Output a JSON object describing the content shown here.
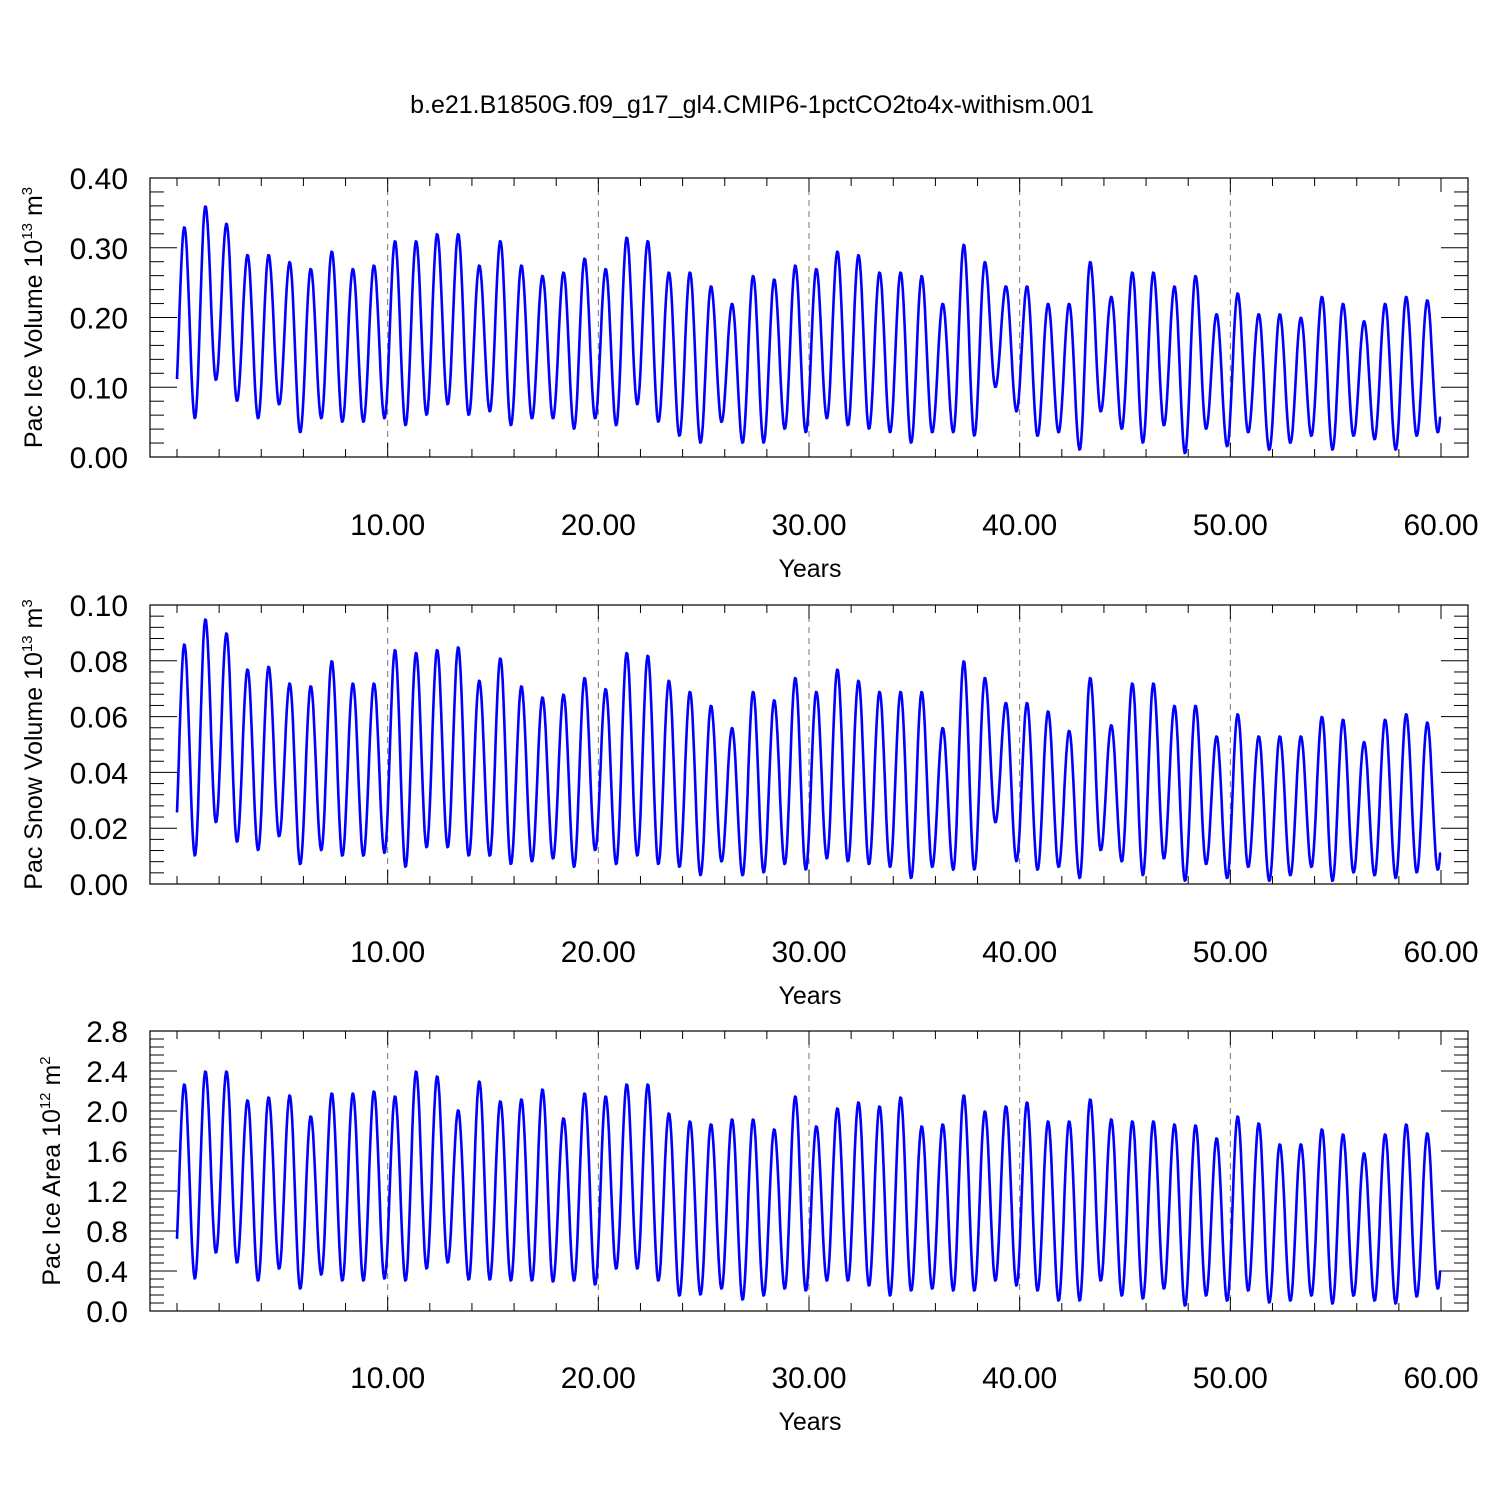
{
  "title": "b.e21.B1850G.f09_g17_gl4.CMIP6-1pctCO2to4x-withism.001",
  "chart_data": [
    {
      "type": "line",
      "xlabel": "Years",
      "ylabel": {
        "main": "Pac Ice Volume 10",
        "exp": "13",
        "unit": " m",
        "unit_exp": "3"
      },
      "xlim": [
        0,
        60
      ],
      "ylim": [
        0,
        0.4
      ],
      "xticks": [
        10,
        20,
        30,
        40,
        50,
        60
      ],
      "xtick_labels": [
        "10.00",
        "20.00",
        "30.00",
        "40.00",
        "50.00",
        "60.00"
      ],
      "yticks": [
        0,
        0.1,
        0.2,
        0.3,
        0.4
      ],
      "ytick_labels": [
        "0.00",
        "0.10",
        "0.20",
        "0.30",
        "0.40"
      ],
      "grid": "vertical dashed at x major ticks",
      "color": "#0000ff",
      "series": [
        {
          "frequency": "monthly seasonal cycle, one peak per year",
          "annual_max": [
            0.33,
            0.36,
            0.335,
            0.29,
            0.29,
            0.28,
            0.27,
            0.295,
            0.27,
            0.275,
            0.31,
            0.31,
            0.32,
            0.32,
            0.275,
            0.31,
            0.275,
            0.26,
            0.265,
            0.285,
            0.27,
            0.315,
            0.31,
            0.265,
            0.265,
            0.245,
            0.22,
            0.26,
            0.255,
            0.275,
            0.27,
            0.295,
            0.29,
            0.265,
            0.265,
            0.26,
            0.22,
            0.305,
            0.28,
            0.245,
            0.245,
            0.22,
            0.22,
            0.28,
            0.23,
            0.265,
            0.265,
            0.245,
            0.26,
            0.205,
            0.235,
            0.205,
            0.205,
            0.2,
            0.23,
            0.22,
            0.195,
            0.22,
            0.23,
            0.225
          ],
          "annual_min": [
            0.055,
            0.11,
            0.08,
            0.055,
            0.075,
            0.035,
            0.055,
            0.05,
            0.05,
            0.055,
            0.045,
            0.06,
            0.075,
            0.06,
            0.065,
            0.045,
            0.055,
            0.055,
            0.04,
            0.055,
            0.045,
            0.075,
            0.05,
            0.03,
            0.02,
            0.05,
            0.02,
            0.02,
            0.04,
            0.035,
            0.055,
            0.045,
            0.04,
            0.035,
            0.02,
            0.035,
            0.035,
            0.03,
            0.1,
            0.065,
            0.03,
            0.035,
            0.01,
            0.065,
            0.04,
            0.02,
            0.045,
            0.005,
            0.04,
            0.015,
            0.035,
            0.01,
            0.02,
            0.03,
            0.01,
            0.03,
            0.025,
            0.01,
            0.03,
            0.035
          ]
        }
      ]
    },
    {
      "type": "line",
      "xlabel": "Years",
      "ylabel": {
        "main": "Pac Snow Volume 10",
        "exp": "13",
        "unit": " m",
        "unit_exp": "3"
      },
      "xlim": [
        0,
        60
      ],
      "ylim": [
        0,
        0.1
      ],
      "xticks": [
        10,
        20,
        30,
        40,
        50,
        60
      ],
      "xtick_labels": [
        "10.00",
        "20.00",
        "30.00",
        "40.00",
        "50.00",
        "60.00"
      ],
      "yticks": [
        0,
        0.02,
        0.04,
        0.06,
        0.08,
        0.1
      ],
      "ytick_labels": [
        "0.00",
        "0.02",
        "0.04",
        "0.06",
        "0.08",
        "0.10"
      ],
      "grid": "vertical dashed at x major ticks",
      "color": "#0000ff",
      "series": [
        {
          "frequency": "monthly seasonal cycle, one peak per year",
          "annual_max": [
            0.086,
            0.095,
            0.09,
            0.077,
            0.078,
            0.072,
            0.071,
            0.08,
            0.072,
            0.072,
            0.084,
            0.083,
            0.084,
            0.085,
            0.073,
            0.081,
            0.071,
            0.067,
            0.068,
            0.074,
            0.07,
            0.083,
            0.082,
            0.073,
            0.069,
            0.064,
            0.056,
            0.069,
            0.066,
            0.074,
            0.069,
            0.077,
            0.073,
            0.069,
            0.069,
            0.069,
            0.056,
            0.08,
            0.074,
            0.065,
            0.065,
            0.062,
            0.055,
            0.074,
            0.057,
            0.072,
            0.072,
            0.064,
            0.064,
            0.053,
            0.061,
            0.053,
            0.053,
            0.053,
            0.06,
            0.059,
            0.051,
            0.059,
            0.061,
            0.058
          ],
          "annual_min": [
            0.01,
            0.022,
            0.015,
            0.012,
            0.017,
            0.007,
            0.012,
            0.01,
            0.01,
            0.011,
            0.006,
            0.013,
            0.013,
            0.01,
            0.01,
            0.007,
            0.008,
            0.009,
            0.006,
            0.012,
            0.007,
            0.01,
            0.007,
            0.006,
            0.003,
            0.008,
            0.003,
            0.004,
            0.007,
            0.005,
            0.009,
            0.008,
            0.007,
            0.006,
            0.002,
            0.006,
            0.005,
            0.005,
            0.022,
            0.008,
            0.005,
            0.006,
            0.002,
            0.012,
            0.008,
            0.003,
            0.009,
            0.001,
            0.007,
            0.002,
            0.006,
            0.001,
            0.003,
            0.006,
            0.001,
            0.004,
            0.003,
            0.002,
            0.004,
            0.005
          ]
        }
      ]
    },
    {
      "type": "line",
      "xlabel": "Years",
      "ylabel": {
        "main": "Pac Ice Area 10",
        "exp": "12",
        "unit": " m",
        "unit_exp": "2"
      },
      "xlim": [
        0,
        60
      ],
      "ylim": [
        0,
        2.8
      ],
      "xticks": [
        10,
        20,
        30,
        40,
        50,
        60
      ],
      "xtick_labels": [
        "10.00",
        "20.00",
        "30.00",
        "40.00",
        "50.00",
        "60.00"
      ],
      "yticks": [
        0,
        0.4,
        0.8,
        1.2,
        1.6,
        2.0,
        2.4,
        2.8
      ],
      "ytick_labels": [
        "0.0",
        "0.4",
        "0.8",
        "1.2",
        "1.6",
        "2.0",
        "2.4",
        "2.8"
      ],
      "grid": "vertical dashed at x major ticks",
      "color": "#0000ff",
      "series": [
        {
          "frequency": "monthly seasonal cycle, one peak per year",
          "annual_max": [
            2.27,
            2.4,
            2.4,
            2.11,
            2.14,
            2.16,
            1.95,
            2.18,
            2.18,
            2.2,
            2.15,
            2.4,
            2.35,
            2.01,
            2.3,
            2.1,
            2.12,
            2.22,
            1.93,
            2.18,
            2.15,
            2.27,
            2.27,
            1.98,
            1.9,
            1.87,
            1.92,
            1.92,
            1.82,
            2.15,
            1.85,
            2.03,
            2.09,
            2.05,
            2.14,
            1.85,
            1.87,
            2.16,
            2.0,
            2.05,
            2.09,
            1.9,
            1.9,
            2.12,
            1.92,
            1.9,
            1.9,
            1.87,
            1.86,
            1.73,
            1.95,
            1.88,
            1.67,
            1.67,
            1.82,
            1.77,
            1.58,
            1.77,
            1.87,
            1.78
          ],
          "annual_min": [
            0.32,
            0.58,
            0.48,
            0.3,
            0.42,
            0.22,
            0.36,
            0.3,
            0.3,
            0.32,
            0.3,
            0.42,
            0.48,
            0.31,
            0.31,
            0.3,
            0.3,
            0.29,
            0.3,
            0.26,
            0.42,
            0.42,
            0.3,
            0.15,
            0.16,
            0.22,
            0.11,
            0.15,
            0.22,
            0.2,
            0.3,
            0.3,
            0.25,
            0.15,
            0.2,
            0.22,
            0.2,
            0.2,
            0.3,
            0.25,
            0.2,
            0.1,
            0.1,
            0.3,
            0.15,
            0.12,
            0.22,
            0.05,
            0.15,
            0.1,
            0.2,
            0.08,
            0.1,
            0.15,
            0.07,
            0.15,
            0.1,
            0.07,
            0.14,
            0.22
          ]
        }
      ]
    }
  ]
}
